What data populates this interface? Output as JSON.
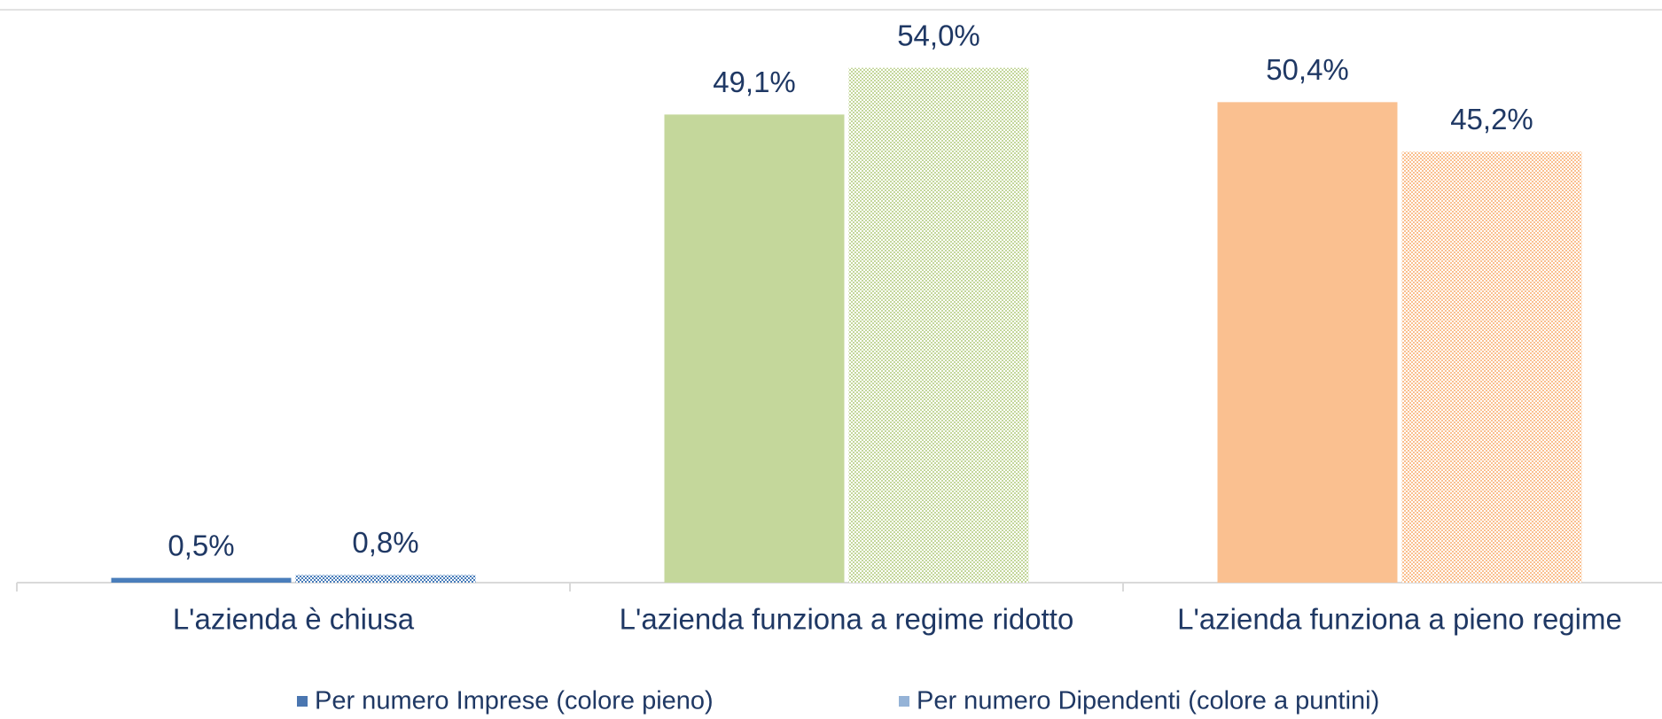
{
  "chart_data": {
    "type": "bar",
    "categories": [
      "L'azienda è chiusa",
      "L'azienda funziona a regime ridotto",
      "L'azienda funziona a pieno regime"
    ],
    "bar_colors": [
      "#4a7ebb",
      "#c4d79b",
      "#fac090"
    ],
    "series": [
      {
        "name": "Per numero Imprese (colore pieno)",
        "color": "#4a76b0",
        "pattern": "solid",
        "values": [
          0.5,
          49.1,
          50.4
        ],
        "value_labels": [
          "0,5%",
          "49,1%",
          "50,4%"
        ]
      },
      {
        "name": "Per numero Dipendenti (colore a puntini)",
        "color": "#95b3d7",
        "pattern": "dotted",
        "values": [
          0.8,
          54.0,
          45.2
        ],
        "value_labels": [
          "0,8%",
          "54,0%",
          "45,2%"
        ]
      }
    ],
    "ylim": [
      0,
      60
    ]
  }
}
